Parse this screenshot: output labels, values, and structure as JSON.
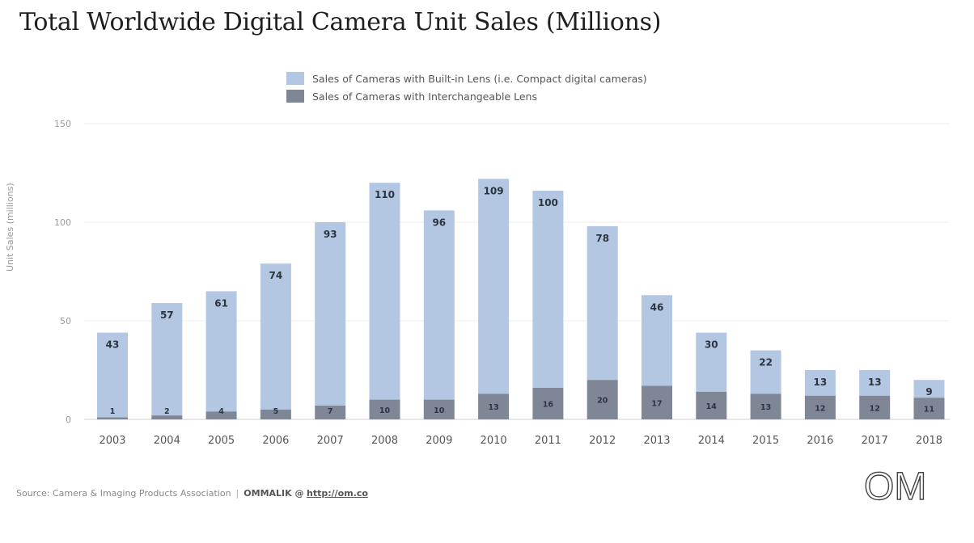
{
  "chart_data": {
    "type": "bar",
    "stacked": true,
    "title": "Total Worldwide Digital Camera Unit Sales (Millions)",
    "ylabel": "Unit Sales (millions)",
    "xlabel": "",
    "ylim": [
      0,
      150
    ],
    "yticks": [
      "0",
      "50",
      "100",
      "150"
    ],
    "grid": true,
    "legend_position": "top-center",
    "categories": [
      "2003",
      "2004",
      "2005",
      "2006",
      "2007",
      "2008",
      "2009",
      "2010",
      "2011",
      "2012",
      "2013",
      "2014",
      "2015",
      "2016",
      "2017",
      "2018"
    ],
    "series": [
      {
        "name": "Sales of Cameras with Interchangeable Lens",
        "color": "#7f8797",
        "values": [
          1,
          2,
          4,
          5,
          7,
          10,
          10,
          13,
          16,
          20,
          17,
          14,
          13,
          12,
          12,
          11
        ]
      },
      {
        "name": "Sales of Cameras with Built-in Lens (i.e. Compact digital cameras)",
        "color": "#b3c7e3",
        "values": [
          43,
          57,
          61,
          74,
          93,
          110,
          96,
          109,
          100,
          78,
          46,
          30,
          22,
          13,
          13,
          9
        ]
      }
    ]
  },
  "source": {
    "label": "Source: Camera & Imaging Products Association",
    "separator": "|",
    "brand": "OMMALIK @",
    "link": "http://om.co"
  },
  "logo_text": "OM"
}
